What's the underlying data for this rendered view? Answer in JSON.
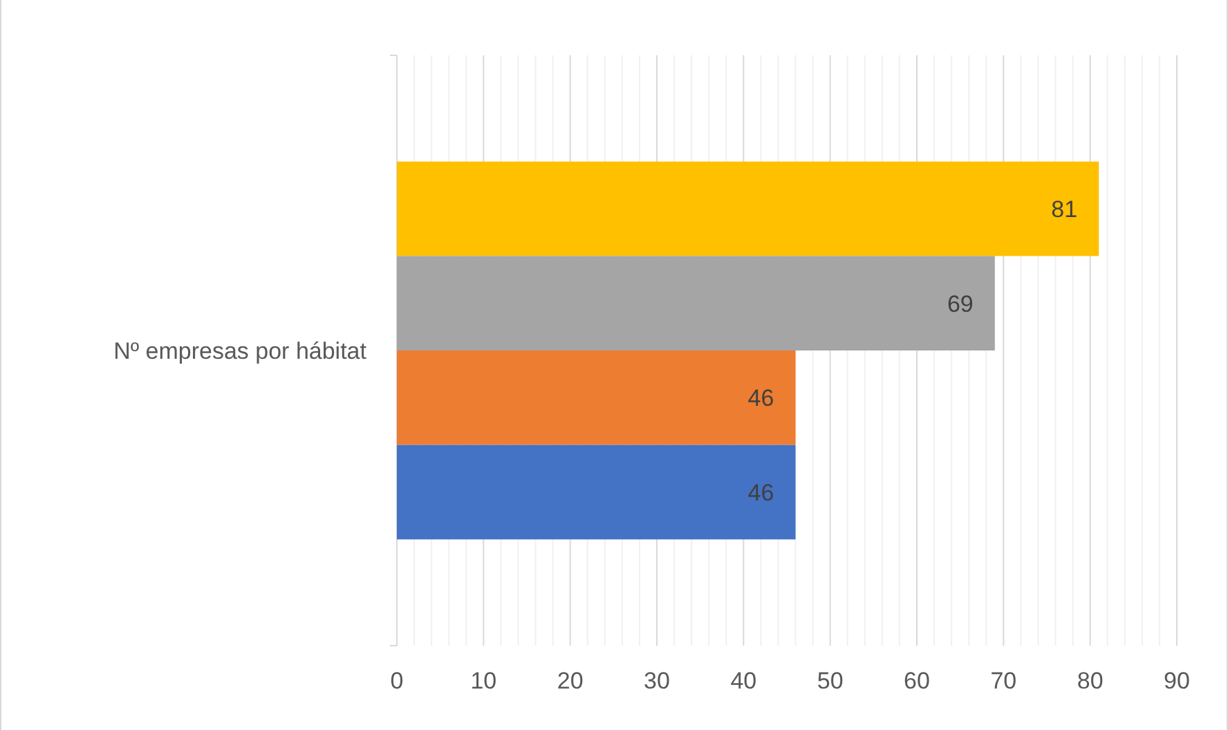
{
  "chart_data": {
    "type": "bar",
    "orientation": "horizontal",
    "categories": [
      null,
      null,
      null,
      null
    ],
    "values": [
      81,
      69,
      46,
      46
    ],
    "colors": [
      "#ffc000",
      "#a5a5a5",
      "#ed7d31",
      "#4472c4"
    ],
    "annotations": [
      "Nº empresas por hábitat"
    ],
    "xlim": [
      0,
      90
    ],
    "xticks": [
      0,
      {
        "value": 2,
        "label": null
      },
      {
        "value": 4,
        "label": null
      },
      {
        "value": 6,
        "label": null
      },
      {
        "value": 8,
        "label": null
      },
      10,
      {
        "value": 12,
        "label": null
      },
      {
        "value": 14,
        "label": null
      },
      {
        "value": 16,
        "label": null
      },
      {
        "value": 18,
        "label": null
      },
      20,
      {
        "value": 22,
        "label": null
      },
      {
        "value": 24,
        "label": null
      },
      {
        "value": 26,
        "label": null
      },
      {
        "value": 28,
        "label": null
      },
      30,
      {
        "value": 32,
        "label": null
      },
      {
        "value": 34,
        "label": null
      },
      {
        "value": 36,
        "label": null
      },
      {
        "value": 38,
        "label": null
      },
      40,
      {
        "value": 42,
        "label": null
      },
      {
        "value": 44,
        "label": null
      },
      {
        "value": 46,
        "label": null
      },
      {
        "value": 48,
        "label": null
      },
      50,
      {
        "value": 52,
        "label": null
      },
      {
        "value": 54,
        "label": null
      },
      {
        "value": 56,
        "label": null
      },
      {
        "value": 58,
        "label": null
      },
      60,
      {
        "value": 62,
        "label": null
      },
      {
        "value": 64,
        "label": null
      },
      {
        "value": 66,
        "label": null
      },
      {
        "value": 68,
        "label": null
      },
      70,
      {
        "value": 72,
        "label": null
      },
      {
        "value": 74,
        "label": null
      },
      {
        "value": 76,
        "label": null
      },
      {
        "value": 78,
        "label": null
      },
      80,
      {
        "value": 82,
        "label": null
      },
      {
        "value": 84,
        "label": null
      },
      {
        "value": 86,
        "label": null
      },
      {
        "value": 88,
        "label": null
      },
      90
    ],
    "grid": "x",
    "data_labels": true
  }
}
